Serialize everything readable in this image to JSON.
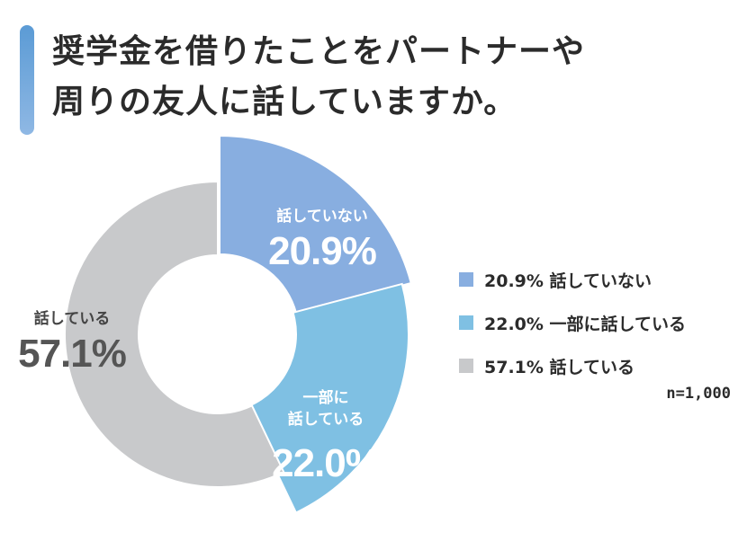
{
  "title": {
    "line1": "奨学金を借りたことをパートナーや",
    "line2": "周りの友人に話していますか。"
  },
  "chart_data": {
    "type": "pie",
    "style": "donut-exploded",
    "series": [
      {
        "name": "話していない",
        "value": 20.9,
        "value_label": "20.9%",
        "slice_label_lines": [
          "話していない"
        ],
        "legend_label": "20.9% 話していない",
        "color": "#88aee0"
      },
      {
        "name": "一部に話している",
        "value": 22.0,
        "value_label": "22.0%",
        "slice_label_lines": [
          "一部に",
          "話している"
        ],
        "legend_label": "22.0% 一部に話している",
        "color": "#7fc0e3"
      },
      {
        "name": "話している",
        "value": 57.1,
        "value_label": "57.1%",
        "slice_label_lines": [
          "話している"
        ],
        "legend_label": "57.1% 話している",
        "color": "#c8c9cb"
      }
    ],
    "legend_position": "right",
    "sample_note": "n=1,000"
  },
  "colors": {
    "accent_bar": "#5b9bd5",
    "text": "#2b2b2b",
    "gray_label_value": "#555555",
    "gray_label_text": "#444444",
    "blue_slice_text": "#ffffff"
  }
}
